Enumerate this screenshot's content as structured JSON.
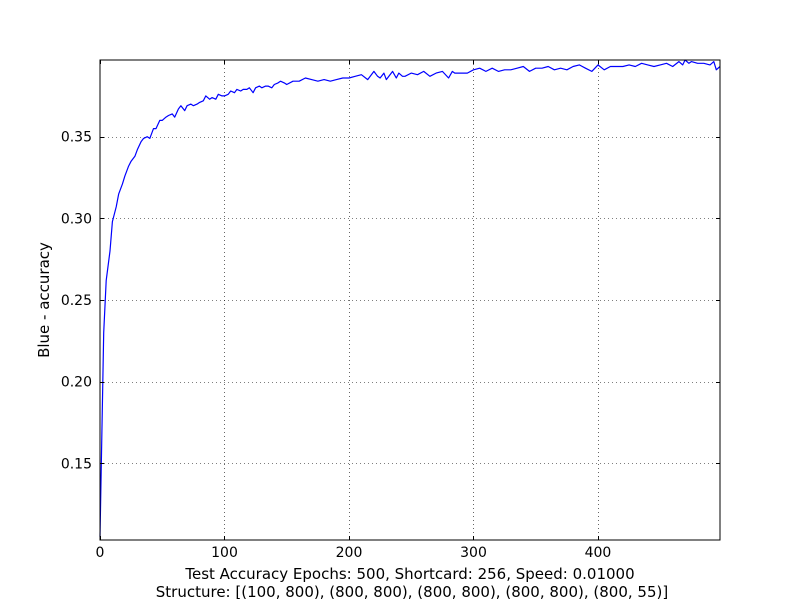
{
  "chart_data": {
    "type": "line",
    "title": "",
    "xlabel_line1": "Test Accuracy Epochs: 500, Shortcard: 256, Speed: 0.01000",
    "xlabel_line2": "Structure: [(100, 800), (800, 800), (800, 800), (800, 800), (800, 55)]",
    "ylabel": "Blue - accuracy",
    "xlim": [
      0,
      498
    ],
    "ylim": [
      0.103,
      0.397
    ],
    "xticks": [
      0,
      100,
      200,
      300,
      400
    ],
    "xtick_labels": [
      "0",
      "100",
      "200",
      "300",
      "400"
    ],
    "yticks": [
      0.15,
      0.2,
      0.25,
      0.3,
      0.35
    ],
    "ytick_labels": [
      "0.15",
      "0.20",
      "0.25",
      "0.30",
      "0.35"
    ],
    "grid": true,
    "series": [
      {
        "color": "#0000ff",
        "x": [
          0,
          3,
          5,
          8,
          10,
          13,
          15,
          18,
          20,
          23,
          25,
          28,
          30,
          33,
          35,
          38,
          40,
          43,
          45,
          48,
          50,
          53,
          55,
          58,
          60,
          63,
          65,
          68,
          70,
          73,
          75,
          78,
          80,
          83,
          85,
          88,
          90,
          93,
          95,
          98,
          100,
          103,
          105,
          108,
          110,
          113,
          115,
          118,
          120,
          123,
          125,
          128,
          130,
          133,
          135,
          138,
          140,
          143,
          145,
          148,
          150,
          155,
          160,
          165,
          170,
          175,
          180,
          185,
          190,
          195,
          200,
          205,
          210,
          215,
          220,
          223,
          225,
          228,
          230,
          235,
          238,
          240,
          243,
          245,
          250,
          255,
          260,
          265,
          270,
          275,
          280,
          283,
          285,
          288,
          290,
          295,
          300,
          305,
          310,
          315,
          320,
          325,
          330,
          335,
          340,
          345,
          350,
          355,
          360,
          365,
          370,
          375,
          380,
          385,
          390,
          395,
          400,
          405,
          410,
          415,
          420,
          425,
          430,
          435,
          440,
          445,
          450,
          455,
          460,
          465,
          468,
          470,
          473,
          475,
          480,
          485,
          490,
          493,
          495,
          498
        ],
        "y": [
          0.105,
          0.23,
          0.262,
          0.28,
          0.298,
          0.307,
          0.315,
          0.321,
          0.326,
          0.332,
          0.335,
          0.338,
          0.342,
          0.347,
          0.349,
          0.35,
          0.349,
          0.355,
          0.355,
          0.36,
          0.36,
          0.362,
          0.363,
          0.364,
          0.362,
          0.367,
          0.369,
          0.366,
          0.369,
          0.37,
          0.369,
          0.37,
          0.371,
          0.372,
          0.375,
          0.373,
          0.374,
          0.373,
          0.376,
          0.375,
          0.375,
          0.376,
          0.378,
          0.377,
          0.379,
          0.378,
          0.379,
          0.379,
          0.38,
          0.377,
          0.38,
          0.381,
          0.38,
          0.381,
          0.381,
          0.38,
          0.382,
          0.383,
          0.384,
          0.383,
          0.382,
          0.384,
          0.384,
          0.386,
          0.385,
          0.384,
          0.385,
          0.384,
          0.385,
          0.386,
          0.386,
          0.387,
          0.388,
          0.385,
          0.39,
          0.387,
          0.386,
          0.389,
          0.385,
          0.39,
          0.386,
          0.389,
          0.387,
          0.387,
          0.389,
          0.388,
          0.39,
          0.387,
          0.389,
          0.39,
          0.386,
          0.39,
          0.389,
          0.389,
          0.389,
          0.389,
          0.391,
          0.392,
          0.39,
          0.392,
          0.39,
          0.391,
          0.391,
          0.392,
          0.393,
          0.39,
          0.392,
          0.392,
          0.393,
          0.391,
          0.392,
          0.391,
          0.393,
          0.394,
          0.392,
          0.39,
          0.394,
          0.391,
          0.393,
          0.393,
          0.393,
          0.394,
          0.393,
          0.395,
          0.394,
          0.393,
          0.394,
          0.395,
          0.393,
          0.396,
          0.394,
          0.397,
          0.395,
          0.396,
          0.395,
          0.395,
          0.394,
          0.396,
          0.391,
          0.393
        ]
      }
    ]
  }
}
